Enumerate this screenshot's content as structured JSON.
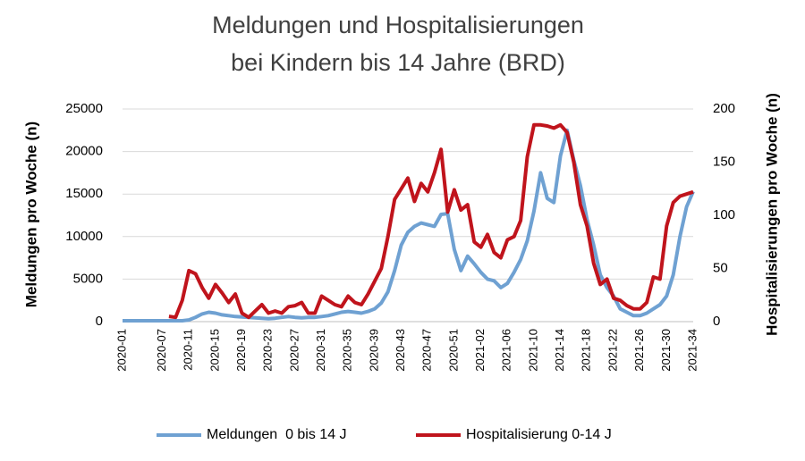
{
  "chart_data": {
    "type": "line",
    "title": [
      "Meldungen und Hospitalisierungen",
      "bei Kindern bis 14 Jahre (BRD)"
    ],
    "y_label": "Meldungen pro Woche (n)",
    "y2_label": "Hospitalisierungen pro Woche (n)",
    "categories": [
      "2020-01",
      null,
      null,
      null,
      null,
      null,
      "2020-07",
      null,
      null,
      null,
      "2020-11",
      null,
      null,
      null,
      "2020-15",
      null,
      null,
      null,
      "2020-19",
      null,
      null,
      null,
      "2020-23",
      null,
      null,
      null,
      "2020-27",
      null,
      null,
      null,
      "2020-31",
      null,
      null,
      null,
      "2020-35",
      null,
      null,
      null,
      "2020-39",
      null,
      null,
      null,
      "2020-43",
      null,
      null,
      null,
      "2020-47",
      null,
      null,
      null,
      "2020-51",
      null,
      null,
      null,
      "2021-02",
      null,
      null,
      null,
      "2021-06",
      null,
      null,
      null,
      "2021-10",
      null,
      null,
      null,
      "2021-14",
      null,
      null,
      null,
      "2021-18",
      null,
      null,
      null,
      "2021-22",
      null,
      null,
      null,
      "2021-26",
      null,
      null,
      null,
      "2021-30",
      null,
      null,
      null,
      "2021-34"
    ],
    "series": [
      {
        "name": "Meldungen  0 bis 14 J",
        "color": "#6fa1d2",
        "values": [
          100,
          100,
          100,
          100,
          100,
          100,
          100,
          100,
          100,
          100,
          200,
          500,
          900,
          1100,
          1000,
          800,
          700,
          600,
          550,
          500,
          450,
          400,
          350,
          400,
          500,
          600,
          500,
          450,
          500,
          500,
          600,
          700,
          900,
          1100,
          1200,
          1100,
          1000,
          1200,
          1500,
          2200,
          3500,
          6000,
          9000,
          10500,
          11200,
          11600,
          11400,
          11200,
          12600,
          12700,
          8500,
          6000,
          7700,
          6800,
          5800,
          5000,
          4800,
          4000,
          4500,
          5800,
          7300,
          9500,
          13000,
          17500,
          14500,
          14000,
          19500,
          22500,
          19000,
          16000,
          12000,
          9000,
          5500,
          4000,
          3000,
          1500,
          1100,
          700,
          700,
          1000,
          1500,
          2000,
          3000,
          5500,
          10000,
          13500,
          15300
        ]
      },
      {
        "name": "Hospitalisierung 0-14 J",
        "color": "#c0141c",
        "axis": "y2",
        "values": [
          null,
          null,
          null,
          null,
          null,
          null,
          null,
          5,
          4,
          20,
          48,
          45,
          32,
          22,
          35,
          27,
          18,
          26,
          8,
          4,
          10,
          16,
          8,
          10,
          8,
          14,
          15,
          18,
          8,
          8,
          24,
          20,
          16,
          14,
          24,
          18,
          16,
          26,
          38,
          50,
          80,
          115,
          125,
          135,
          113,
          130,
          122,
          140,
          162,
          103,
          124,
          105,
          110,
          75,
          70,
          82,
          65,
          60,
          77,
          80,
          95,
          155,
          185,
          185,
          184,
          182,
          185,
          178,
          150,
          110,
          90,
          55,
          35,
          40,
          22,
          20,
          15,
          12,
          12,
          18,
          42,
          40,
          90,
          112,
          118,
          120,
          122
        ]
      }
    ],
    "ylim": [
      0,
      25000
    ],
    "yticks": [
      0,
      5000,
      10000,
      15000,
      20000,
      25000
    ],
    "y2lim": [
      0,
      200
    ],
    "y2ticks": [
      0,
      50,
      100,
      150,
      200
    ],
    "grid": true,
    "legend": "bottom"
  }
}
